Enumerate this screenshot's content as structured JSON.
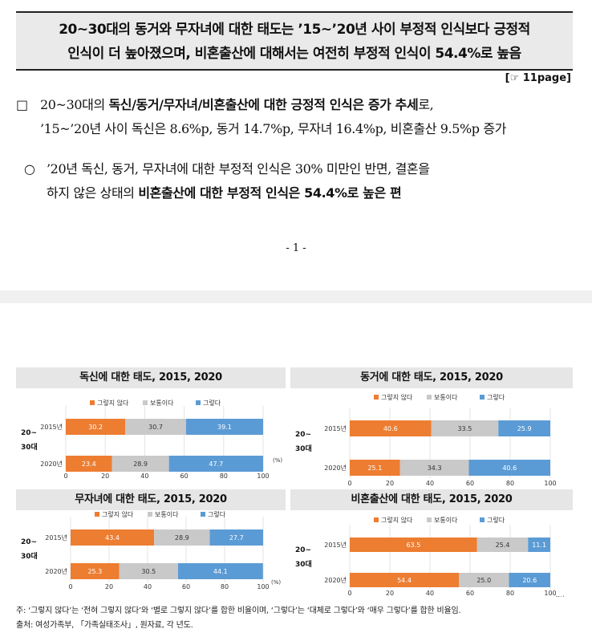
{
  "headline": {
    "line1": "20~30대의 동거와 무자녀에 대한 태도는 ’15~’20년 사이 부정적 인식보다 긍정적",
    "line2": "인식이 더 높아졌으며, 비혼출산에 대해서는 여전히 부정적 인식이 54.4%로 높음"
  },
  "page_ref": "[☞  11page]",
  "bullet1": {
    "mark": "□",
    "line1_pre": "20~30대의 ",
    "line1_bold": "독신/동거/무자녀/비혼출산에 대한 긍정적 인식은 증가 추세",
    "line1_post": "로,",
    "line2": "’15~’20년 사이 독신은 8.6%p, 동거 14.7%p, 무자녀 16.4%p, 비혼출산 9.5%p 증가"
  },
  "bullet2": {
    "mark": "○",
    "line1": "’20년 독신, 동거, 무자녀에 대한 부정적 인식은 30% 미만인 반면, 결혼을",
    "line2_pre": "하지 않은 상태의 ",
    "line2_bold": "비혼출산에 대한 부정적 인식은 54.4%로 높은 편"
  },
  "page_number": "- 1 -",
  "legend": [
    "그렇지 않다",
    "보통이다",
    "그렇다"
  ],
  "colors": {
    "negative": "#ed7d31",
    "neutral": "#c9c9c9",
    "positive": "#5b9bd5",
    "header_bg": "#e6e6e6"
  },
  "group_label": [
    "20~",
    "30대"
  ],
  "unit_label": "(%)",
  "chart_data": [
    {
      "type": "bar",
      "title": "독신에 대한 태도, 2015, 2020",
      "stacked": true,
      "orientation": "horizontal",
      "categories": [
        "2015년",
        "2020년"
      ],
      "xlim": [
        0,
        100
      ],
      "xticks": [
        0,
        20,
        40,
        60,
        80,
        100
      ],
      "series": [
        {
          "name": "그렇지 않다",
          "values": [
            30.2,
            23.4
          ]
        },
        {
          "name": "보통이다",
          "values": [
            30.7,
            28.9
          ]
        },
        {
          "name": "그렇다",
          "values": [
            39.1,
            47.7
          ]
        }
      ]
    },
    {
      "type": "bar",
      "title": "동거에 대한 태도, 2015, 2020",
      "stacked": true,
      "orientation": "horizontal",
      "categories": [
        "2015년",
        "2020년"
      ],
      "xlim": [
        0,
        100
      ],
      "xticks": [
        0,
        20,
        40,
        60,
        80,
        100
      ],
      "series": [
        {
          "name": "그렇지 않다",
          "values": [
            40.6,
            25.1
          ]
        },
        {
          "name": "보통이다",
          "values": [
            33.5,
            34.3
          ]
        },
        {
          "name": "그렇다",
          "values": [
            25.9,
            40.6
          ]
        }
      ]
    },
    {
      "type": "bar",
      "title": "무자녀에 대한 태도, 2015, 2020",
      "stacked": true,
      "orientation": "horizontal",
      "categories": [
        "2015년",
        "2020년"
      ],
      "xlim": [
        0,
        100
      ],
      "xticks": [
        0,
        20,
        40,
        60,
        80,
        100
      ],
      "series": [
        {
          "name": "그렇지 않다",
          "values": [
            43.4,
            25.3
          ]
        },
        {
          "name": "보통이다",
          "values": [
            28.9,
            30.5
          ]
        },
        {
          "name": "그렇다",
          "values": [
            27.7,
            44.1
          ]
        }
      ]
    },
    {
      "type": "bar",
      "title": "비혼출산에 대한 태도, 2015, 2020",
      "stacked": true,
      "orientation": "horizontal",
      "categories": [
        "2015년",
        "2020년"
      ],
      "xlim": [
        0,
        100
      ],
      "xticks": [
        0,
        20,
        40,
        60,
        80,
        100
      ],
      "series": [
        {
          "name": "그렇지 않다",
          "values": [
            63.5,
            54.4
          ]
        },
        {
          "name": "보통이다",
          "values": [
            25.4,
            25.0
          ]
        },
        {
          "name": "그렇다",
          "values": [
            11.1,
            20.6
          ]
        }
      ]
    }
  ],
  "footer": {
    "note": "주: ‘그렇지 않다’는 ‘전혀 그렇지 않다’와 ‘별로 그렇지 않다’를 합한 비율이며, ‘그렇다’는 ‘대체로 그렇다’와 ‘매우 그렇다’를 합한 비율임.",
    "source": "출처: 여성가족부, 「가족실태조사」, 원자료, 각 년도."
  }
}
